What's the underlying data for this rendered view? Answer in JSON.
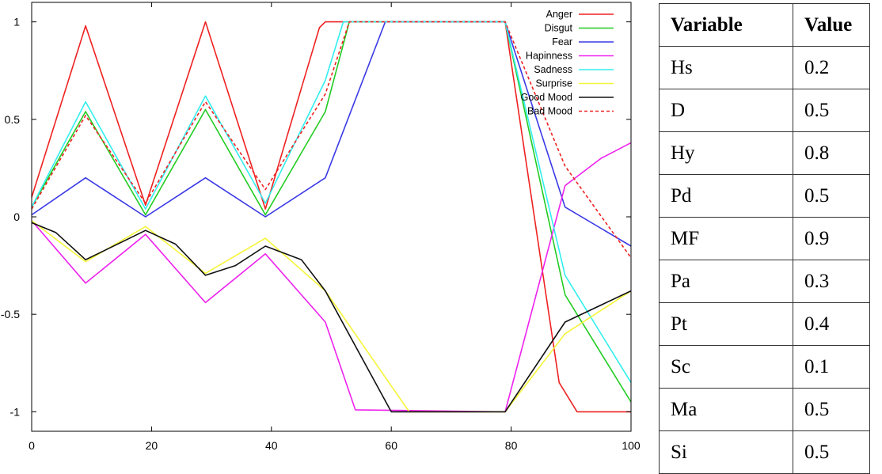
{
  "chart_data": {
    "type": "line",
    "xlim": [
      0,
      100
    ],
    "ylim": [
      -1.1,
      1.1
    ],
    "x_ticks": [
      "0",
      "20",
      "40",
      "60",
      "80",
      "100"
    ],
    "y_ticks": [
      "1",
      "0.5",
      "0",
      "-0.5",
      "-1"
    ],
    "legend_position": "top-right",
    "series": [
      {
        "name": "Anger",
        "color": "#ee2222",
        "dash": "solid",
        "x": [
          0,
          9,
          19,
          29,
          39,
          48,
          49,
          79,
          88,
          91,
          100
        ],
        "y": [
          0.1,
          0.98,
          0.06,
          1.0,
          0.04,
          0.97,
          1.0,
          1.0,
          -0.85,
          -1.0,
          -1.0
        ]
      },
      {
        "name": "Disgut",
        "color": "#22cc22",
        "dash": "solid",
        "x": [
          0,
          9,
          19,
          29,
          39,
          49,
          53,
          79,
          89,
          100
        ],
        "y": [
          0.05,
          0.54,
          0.01,
          0.55,
          0.01,
          0.54,
          1.0,
          1.0,
          -0.4,
          -0.95
        ]
      },
      {
        "name": "Fear",
        "color": "#3a3ae6",
        "dash": "solid",
        "x": [
          0,
          9,
          19,
          29,
          39,
          49,
          59,
          79,
          89,
          100
        ],
        "y": [
          0.01,
          0.2,
          0.0,
          0.2,
          0.0,
          0.2,
          1.0,
          1.0,
          0.05,
          -0.15
        ]
      },
      {
        "name": "Hapinness",
        "color": "#ee22ee",
        "dash": "solid",
        "x": [
          0,
          9,
          19,
          29,
          39,
          49,
          54,
          79,
          89,
          95,
          100
        ],
        "y": [
          -0.02,
          -0.34,
          -0.09,
          -0.44,
          -0.19,
          -0.54,
          -0.99,
          -1.0,
          0.16,
          0.3,
          0.38
        ]
      },
      {
        "name": "Sadness",
        "color": "#33eeee",
        "dash": "solid",
        "x": [
          0,
          9,
          19,
          29,
          39,
          49,
          52,
          79,
          89,
          100
        ],
        "y": [
          0.05,
          0.59,
          0.04,
          0.62,
          0.07,
          0.7,
          1.0,
          1.0,
          -0.3,
          -0.85
        ]
      },
      {
        "name": "Surprise",
        "color": "#f5f53a",
        "dash": "solid",
        "x": [
          0,
          9,
          19,
          29,
          39,
          49,
          63,
          79,
          89,
          100
        ],
        "y": [
          -0.02,
          -0.23,
          -0.05,
          -0.29,
          -0.11,
          -0.38,
          -1.0,
          -1.0,
          -0.6,
          -0.38
        ]
      },
      {
        "name": "Good Mood",
        "color": "#111111",
        "dash": "solid",
        "x": [
          0,
          4,
          9,
          19,
          24,
          29,
          34,
          39,
          45,
          49,
          60,
          79,
          89,
          100
        ],
        "y": [
          -0.03,
          -0.08,
          -0.22,
          -0.07,
          -0.14,
          -0.3,
          -0.25,
          -0.15,
          -0.22,
          -0.38,
          -1.0,
          -1.0,
          -0.54,
          -0.38
        ]
      },
      {
        "name": "Bad Mood",
        "color": "#ee2222",
        "dash": "dashed",
        "x": [
          0,
          9,
          19,
          29,
          39,
          49,
          53,
          79,
          89,
          100
        ],
        "y": [
          0.04,
          0.52,
          0.07,
          0.59,
          0.14,
          0.63,
          1.0,
          1.0,
          0.26,
          -0.21
        ]
      }
    ]
  },
  "table": {
    "headers": [
      "Variable",
      "Value"
    ],
    "rows": [
      [
        "Hs",
        "0.2"
      ],
      [
        "D",
        "0.5"
      ],
      [
        "Hy",
        "0.8"
      ],
      [
        "Pd",
        "0.5"
      ],
      [
        "MF",
        "0.9"
      ],
      [
        "Pa",
        "0.3"
      ],
      [
        "Pt",
        "0.4"
      ],
      [
        "Sc",
        "0.1"
      ],
      [
        "Ma",
        "0.5"
      ],
      [
        "Si",
        "0.5"
      ]
    ]
  }
}
